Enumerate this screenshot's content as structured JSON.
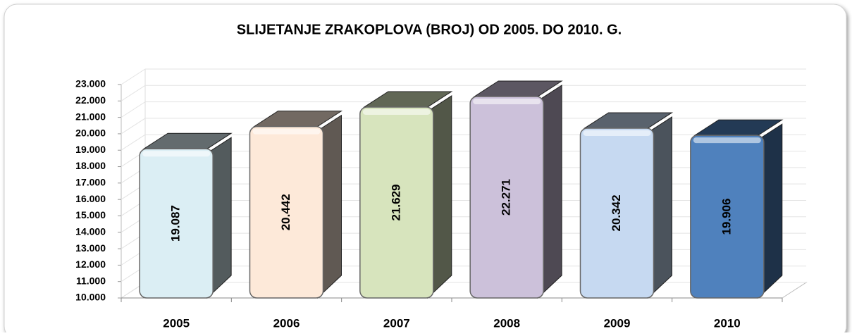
{
  "chart_data": {
    "type": "bar3d",
    "title": "SLIJETANJE ZRAKOPLOVA (BROJ) OD 2005. DO 2010. G.",
    "categories": [
      "2005",
      "2006",
      "2007",
      "2008",
      "2009",
      "2010"
    ],
    "values": [
      19087,
      20442,
      21629,
      22271,
      20342,
      19906
    ],
    "value_labels": [
      "19.087",
      "20.442",
      "21.629",
      "22.271",
      "20.342",
      "19.906"
    ],
    "colors": [
      "#dbeef4",
      "#fde9d9",
      "#d7e4bd",
      "#ccc1da",
      "#c6d9f1",
      "#4f81bd"
    ],
    "ylim": [
      10000,
      23000
    ],
    "yticks": [
      {
        "value": 10000,
        "label": "10.000"
      },
      {
        "value": 11000,
        "label": "11.000"
      },
      {
        "value": 12000,
        "label": "12.000"
      },
      {
        "value": 13000,
        "label": "13.000"
      },
      {
        "value": 14000,
        "label": "14.000"
      },
      {
        "value": 15000,
        "label": "15.000"
      },
      {
        "value": 16000,
        "label": "16.000"
      },
      {
        "value": 17000,
        "label": "17.000"
      },
      {
        "value": 18000,
        "label": "18.000"
      },
      {
        "value": 19000,
        "label": "19.000"
      },
      {
        "value": 20000,
        "label": "20.000"
      },
      {
        "value": 21000,
        "label": "21.000"
      },
      {
        "value": 22000,
        "label": "22.000"
      },
      {
        "value": 23000,
        "label": "23.000"
      }
    ],
    "grid": true
  }
}
